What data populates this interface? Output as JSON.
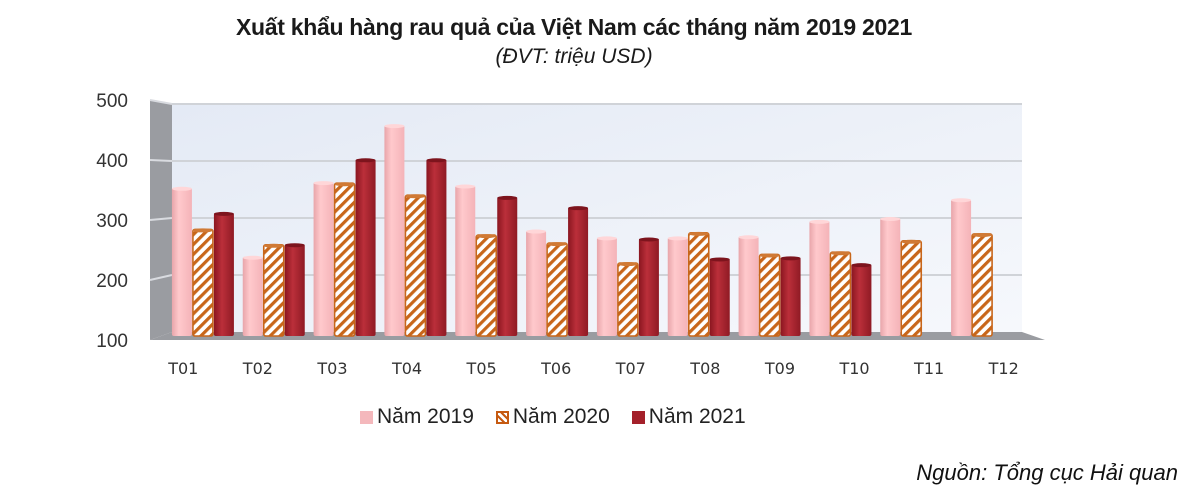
{
  "header": {
    "title": "Xuất khẩu hàng rau quả của Việt Nam các tháng năm 2019 2021",
    "subtitle": "(ĐVT: triệu USD)"
  },
  "legend": {
    "items": [
      {
        "label": "Năm 2019",
        "color": "#f4b8bc"
      },
      {
        "label": "Năm 2020",
        "color": "#c65a11"
      },
      {
        "label": "Năm 2021",
        "color": "#a4202a"
      }
    ]
  },
  "source": "Nguồn: Tổng cục Hải quan",
  "colors": {
    "y2019": "#f7bcc0",
    "y2020_stripe": "#c8661a",
    "y2021": "#a91f2b",
    "wall": "#e9eef7",
    "side_wall": "#9a9ca1",
    "floor": "#9a9ca1",
    "grid": "#d0d3d8"
  },
  "chart_data": {
    "type": "bar",
    "title": "Xuất khẩu hàng rau quả của Việt Nam các tháng năm 2019 2021",
    "subtitle": "(ĐVT: triệu USD)",
    "xlabel": "",
    "ylabel": "",
    "categories": [
      "T01",
      "T02",
      "T03",
      "T04",
      "T05",
      "T06",
      "T07",
      "T08",
      "T09",
      "T10",
      "T11",
      "T12"
    ],
    "series": [
      {
        "name": "Năm 2019",
        "values": [
          353,
          232,
          363,
          463,
          357,
          278,
          266,
          266,
          268,
          295,
          300,
          333
        ]
      },
      {
        "name": "Năm 2020",
        "values": [
          280,
          253,
          361,
          340,
          270,
          256,
          221,
          274,
          236,
          240,
          260,
          272
        ]
      },
      {
        "name": "Năm 2021",
        "values": [
          309,
          254,
          403,
          403,
          337,
          319,
          264,
          229,
          231,
          219,
          null,
          null
        ]
      }
    ],
    "yticks": [
      100,
      200,
      300,
      400,
      500
    ],
    "ylim": [
      100,
      500
    ],
    "grid": true,
    "legend_position": "bottom",
    "style": "3d-cylinder",
    "source": "Nguồn: Tổng cục Hải quan"
  }
}
